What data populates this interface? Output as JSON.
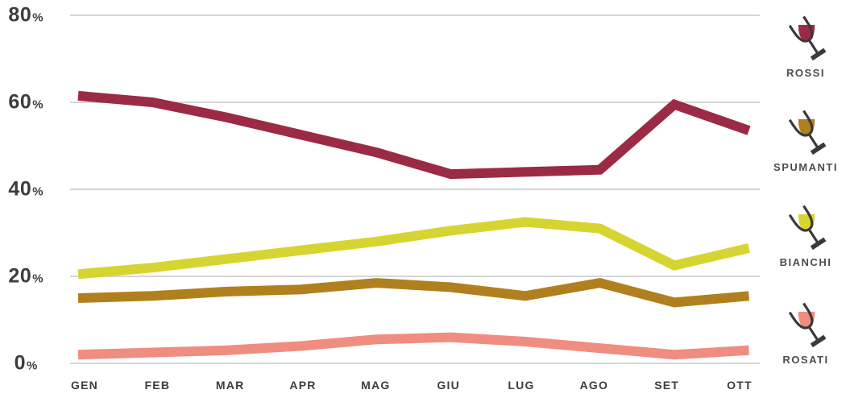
{
  "chart_data": {
    "type": "line",
    "title": "",
    "xlabel": "",
    "ylabel": "",
    "categories": [
      "GEN",
      "FEB",
      "MAR",
      "APR",
      "MAG",
      "GIU",
      "LUG",
      "AGO",
      "SET",
      "OTT"
    ],
    "series": [
      {
        "name": "ROSSI",
        "color": "#9b2b44",
        "values": [
          61.5,
          60,
          56.5,
          52.5,
          48.5,
          43.5,
          44,
          44.5,
          59.5,
          53.5
        ]
      },
      {
        "name": "SPUMANTI",
        "color": "#b1801e",
        "values": [
          15,
          15.5,
          16.5,
          17,
          18.5,
          17.5,
          15.5,
          18.5,
          14,
          15.5
        ]
      },
      {
        "name": "BIANCHI",
        "color": "#d6d431",
        "values": [
          20.5,
          22,
          24,
          26,
          28,
          30.5,
          32.5,
          31,
          22.5,
          26.5
        ]
      },
      {
        "name": "ROSATI",
        "color": "#ef8d80",
        "values": [
          2,
          2.5,
          3,
          4,
          5.5,
          6,
          5,
          3.5,
          2,
          3
        ]
      }
    ],
    "ylim": [
      0,
      80
    ],
    "yticks": [
      0,
      20,
      40,
      60,
      80
    ],
    "ytick_suffix": "%",
    "grid": "horizontal",
    "legend_position": "right"
  },
  "colors": {
    "background": "#ffffff",
    "gridline": "#d6d6d6",
    "axis_text": "#3d3d3d",
    "legend_text": "#4d4d4f",
    "glass_outline": "#3a3a3a"
  }
}
